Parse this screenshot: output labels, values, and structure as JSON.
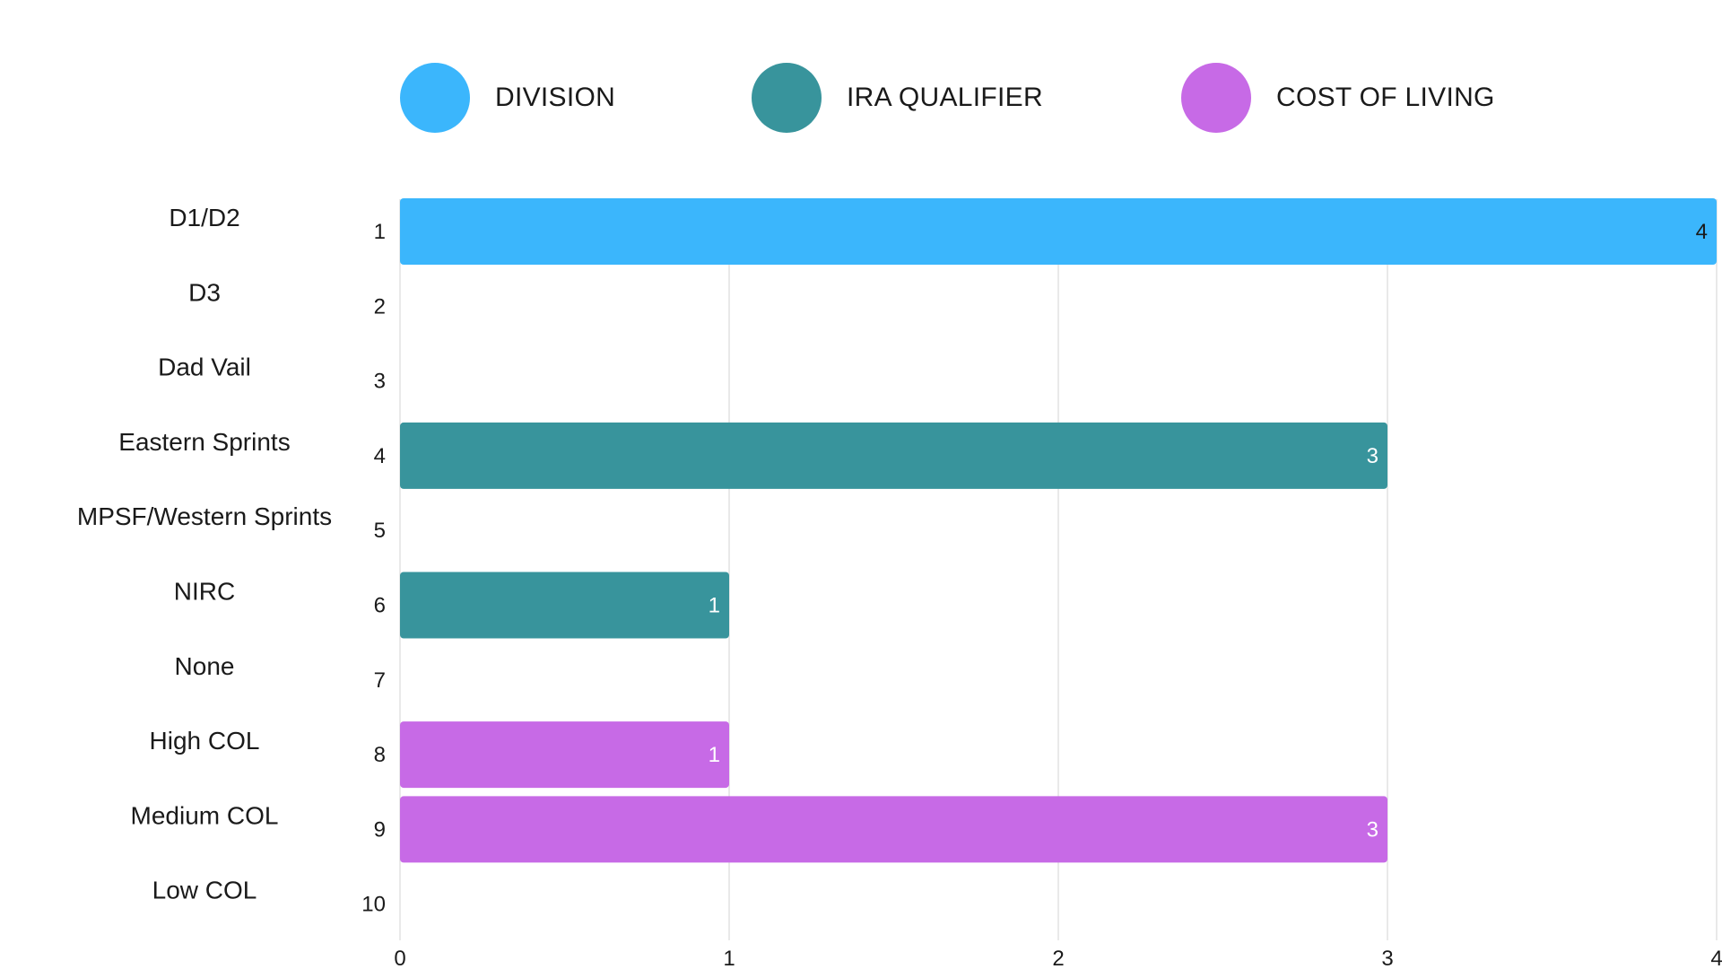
{
  "legend": [
    {
      "label": "DIVISION",
      "color": "#3BB6FC"
    },
    {
      "label": "IRA QUALIFIER",
      "color": "#38949C"
    },
    {
      "label": "COST OF LIVING",
      "color": "#C76AE6"
    }
  ],
  "chart_data": {
    "type": "bar",
    "orientation": "horizontal",
    "title": "",
    "xlabel": "",
    "ylabel": "",
    "xlim": [
      0,
      4
    ],
    "x_ticks": [
      "0",
      "1",
      "2",
      "3",
      "4"
    ],
    "grid": true,
    "legend_position": "top",
    "categories": [
      {
        "label": "D1/D2",
        "row": "1",
        "value": 4,
        "series": "DIVISION",
        "show_label": true
      },
      {
        "label": "D3",
        "row": "2",
        "value": 0,
        "series": "DIVISION",
        "show_label": false
      },
      {
        "label": "Dad Vail",
        "row": "3",
        "value": 0,
        "series": "IRA QUALIFIER",
        "show_label": false
      },
      {
        "label": "Eastern Sprints",
        "row": "4",
        "value": 3,
        "series": "IRA QUALIFIER",
        "show_label": true
      },
      {
        "label": "MPSF/Western Sprints",
        "row": "5",
        "value": 0,
        "series": "IRA QUALIFIER",
        "show_label": false
      },
      {
        "label": "NIRC",
        "row": "6",
        "value": 1,
        "series": "IRA QUALIFIER",
        "show_label": true
      },
      {
        "label": "None",
        "row": "7",
        "value": 0,
        "series": "IRA QUALIFIER",
        "show_label": false
      },
      {
        "label": "High COL",
        "row": "8",
        "value": 1,
        "series": "COST OF LIVING",
        "show_label": true
      },
      {
        "label": "Medium COL",
        "row": "9",
        "value": 3,
        "series": "COST OF LIVING",
        "show_label": true
      },
      {
        "label": "Low COL",
        "row": "10",
        "value": 0,
        "series": "COST OF LIVING",
        "show_label": false
      }
    ],
    "series_colors": {
      "DIVISION": "#3BB6FC",
      "IRA QUALIFIER": "#38949C",
      "COST OF LIVING": "#C76AE6"
    },
    "value_label_colors": {
      "DIVISION": "#1a1a1a",
      "IRA QUALIFIER": "#ffffff",
      "COST OF LIVING": "#ffffff"
    }
  }
}
